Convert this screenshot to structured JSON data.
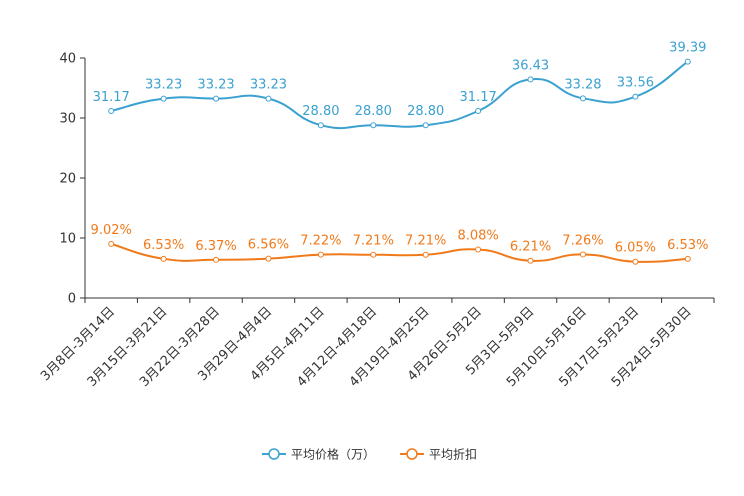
{
  "chart_data": {
    "type": "line",
    "title": "",
    "xlabel": "",
    "ylabel": "",
    "ylim": [
      0,
      40
    ],
    "yticks": [
      0,
      10,
      20,
      30,
      40
    ],
    "grid": false,
    "legend_position": "bottom-center",
    "categories": [
      "3月8日-3月14日",
      "3月15日-3月21日",
      "3月22日-3月28日",
      "3月29日-4月4日",
      "4月5日-4月11日",
      "4月12日-4月18日",
      "4月19日-4月25日",
      "4月26日-5月2日",
      "5月3日-5月9日",
      "5月10日-5月16日",
      "5月17日-5月23日",
      "5月24日-5月30日"
    ],
    "series": [
      {
        "name": "平均价格（万）",
        "color": "#3ba1d0",
        "values": [
          31.17,
          33.23,
          33.23,
          33.23,
          28.8,
          28.8,
          28.8,
          31.17,
          36.43,
          33.28,
          33.56,
          39.39
        ],
        "labels": [
          "31.17",
          "33.23",
          "33.23",
          "33.23",
          "28.80",
          "28.80",
          "28.80",
          "31.17",
          "36.43",
          "33.28",
          "33.56",
          "39.39"
        ]
      },
      {
        "name": "平均折扣",
        "color": "#f07a1a",
        "values": [
          9.02,
          6.53,
          6.37,
          6.56,
          7.22,
          7.21,
          7.21,
          8.08,
          6.21,
          7.26,
          6.05,
          6.53
        ],
        "labels": [
          "9.02%",
          "6.53%",
          "6.37%",
          "6.56%",
          "7.22%",
          "7.21%",
          "7.21%",
          "8.08%",
          "6.21%",
          "7.26%",
          "6.05%",
          "6.53%"
        ]
      }
    ]
  }
}
